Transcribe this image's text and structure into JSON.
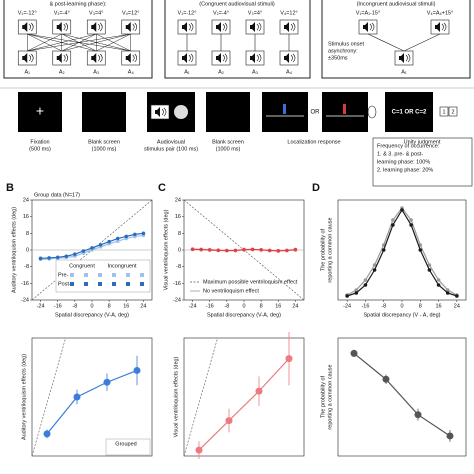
{
  "design": {
    "phase_title": "& post-learning phase):",
    "congruent_title": "(Congruent audiovisual stimuli)",
    "incongruent_title": "(Incongruent audiovisual stimuli)",
    "visual_labels": [
      "V₁=-12°",
      "V₂=-4°",
      "V₃=4°",
      "V₄=12°"
    ],
    "auditory_labels": [
      "A₁",
      "A₂",
      "A₃",
      "A₄"
    ],
    "incongruent_visual": [
      "V₁=A₁-15°",
      "V₄=A₄+15°"
    ],
    "incongruent_auditory": "A₁",
    "soa": [
      "Stimulus onset",
      "asynchrony:",
      "±350ms"
    ]
  },
  "timeline": {
    "steps": [
      [
        "Fixation",
        "(500 ms)"
      ],
      [
        "Blank screen",
        "(1000 ms)"
      ],
      [
        "Audiovisual",
        "stimulus pair (100 ms)"
      ],
      [
        "Blank screen",
        "(1000 ms)"
      ],
      [
        "Localization response"
      ],
      [
        "Unity judgment"
      ]
    ],
    "fixation_symbol": "+",
    "or": "OR",
    "unity": "C=1 OR C=2",
    "keys": [
      "1",
      "2"
    ],
    "frequency": [
      "Frequency of occurrence:",
      "1. & 3. pre- & post-",
      "learning phase: 100%",
      "2. learning phase: 20%"
    ]
  },
  "charts": [
    {
      "type": "line",
      "letter": "B",
      "title": "Group data (N=17)",
      "ylabel": [
        "Auditory ventriloquism effects (deg)"
      ],
      "xlabel": "Spatial discrepancy (V-A, deg)",
      "xlim": [
        -28,
        28
      ],
      "ylim": [
        -24,
        24
      ],
      "xticks": [
        -24,
        -16,
        -8,
        0,
        8,
        16,
        24
      ],
      "yticks": [
        -24,
        -16,
        -8,
        0,
        8,
        16,
        24
      ],
      "reference_line": "rising",
      "x": [
        -24,
        -20,
        -16,
        -12,
        -8,
        -4,
        0,
        4,
        8,
        12,
        16,
        20,
        24
      ],
      "legend_columns": [
        "Congruent",
        "Incongruent"
      ],
      "series": [
        {
          "name": "Pre-",
          "color": "#9cc3ea",
          "values": [
            -4.5,
            -4.3,
            -4,
            -3.6,
            -3,
            -1.5,
            0,
            1.5,
            3,
            4.2,
            5.5,
            6.5,
            7
          ]
        },
        {
          "name": "Post-",
          "color": "#2c6cc0",
          "values": [
            -4,
            -3.8,
            -3.5,
            -3,
            -2,
            -0.5,
            1,
            2.5,
            4,
            5.5,
            6.5,
            7.5,
            8
          ]
        }
      ]
    },
    {
      "type": "line",
      "letter": "C",
      "ylabel": [
        "Visual ventriloquism effects (deg)"
      ],
      "xlabel": "Spatial discrepancy (V-A, deg)",
      "xlim": [
        -28,
        28
      ],
      "ylim": [
        -24,
        24
      ],
      "xticks": [
        -24,
        -16,
        -8,
        0,
        8,
        16,
        24
      ],
      "yticks": [
        -24,
        -16,
        -8,
        0,
        8,
        16,
        24
      ],
      "reference_line": "falling",
      "x": [
        -24,
        -20,
        -16,
        -12,
        -8,
        -4,
        0,
        4,
        8,
        12,
        16,
        20,
        24
      ],
      "legend_entries": [
        "Maximum possible ventriloquism effect",
        "No ventriloquism effect"
      ],
      "series": [
        {
          "color": "#f2a0a0",
          "values": [
            0.5,
            0.3,
            0.2,
            0,
            -0.2,
            -0.3,
            0,
            0.2,
            0,
            -0.3,
            -0.5,
            -0.3,
            0
          ]
        },
        {
          "color": "#e0404a",
          "values": [
            0.3,
            0.2,
            0,
            -0.2,
            -0.3,
            -0.2,
            0.2,
            0.3,
            0.1,
            -0.2,
            -0.4,
            -0.2,
            0.2
          ]
        }
      ]
    },
    {
      "type": "line",
      "letter": "D",
      "ylabel": [
        "The probability of",
        "reporting a common cause"
      ],
      "xlabel": "Spatial discrepancy (V - A, deg)",
      "xlim": [
        -28,
        28
      ],
      "ylim": [
        0,
        1
      ],
      "xticks": [
        -24,
        -16,
        -8,
        0,
        8,
        16,
        24
      ],
      "yticks": [],
      "x": [
        -24,
        -20,
        -16,
        -12,
        -8,
        -4,
        0,
        4,
        8,
        12,
        16,
        20,
        24
      ],
      "series": [
        {
          "color": "#9a9a9a",
          "values": [
            0.05,
            0.1,
            0.2,
            0.35,
            0.55,
            0.8,
            0.92,
            0.8,
            0.55,
            0.35,
            0.2,
            0.1,
            0.05
          ]
        },
        {
          "color": "#1a1a1a",
          "values": [
            0.04,
            0.07,
            0.15,
            0.3,
            0.5,
            0.75,
            0.9,
            0.75,
            0.5,
            0.3,
            0.15,
            0.07,
            0.04
          ]
        }
      ]
    },
    {
      "type": "errorline",
      "ylabel": [
        "Auditory ventriloquism effects (deg)"
      ],
      "ylim": [
        0,
        8
      ],
      "reference_line": "steep",
      "categories": [
        null,
        null,
        null,
        null
      ],
      "legend_entries": [
        "Grouped"
      ],
      "series": [
        {
          "color": "#3b7dd8",
          "values": [
            1.5,
            4,
            5,
            5.8
          ],
          "errors": [
            0.3,
            0.5,
            0.6,
            1
          ]
        }
      ]
    },
    {
      "type": "errorline",
      "ylabel": [
        "Visual ventriloquism effects (deg)"
      ],
      "ylim": [
        0,
        4
      ],
      "reference_line": "steep",
      "categories": [
        null,
        null,
        null,
        null
      ],
      "series": [
        {
          "color": "#ee7a80",
          "values": [
            0.2,
            1.2,
            2.2,
            3.3
          ],
          "errors": [
            0.3,
            0.4,
            0.5,
            0.9
          ]
        }
      ]
    },
    {
      "type": "errorline",
      "ylabel": [
        "The probability of",
        "reporting a common cause"
      ],
      "ylim": [
        0,
        1
      ],
      "categories": [
        null,
        null,
        null,
        null
      ],
      "series": [
        {
          "color": "#555555",
          "values": [
            0.87,
            0.65,
            0.35,
            0.17
          ],
          "errors": [
            0.03,
            0.04,
            0.05,
            0.05
          ]
        }
      ]
    }
  ]
}
